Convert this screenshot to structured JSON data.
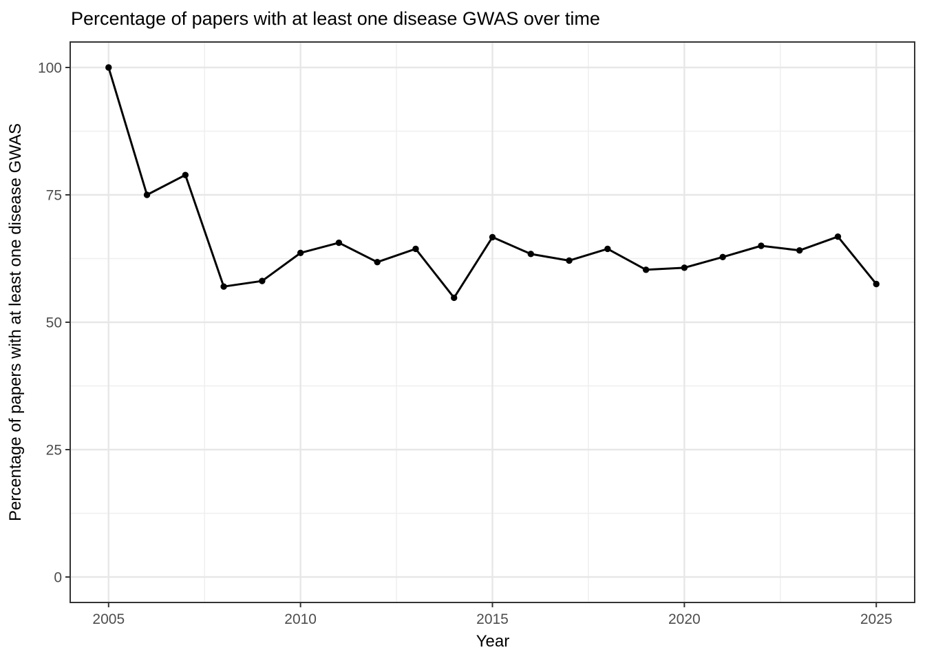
{
  "chart_data": {
    "type": "line",
    "title": "Percentage of papers with at least one disease GWAS over time",
    "xlabel": "Year",
    "ylabel": "Percentage of papers with at least one disease GWAS",
    "x": [
      2005,
      2006,
      2007,
      2008,
      2009,
      2010,
      2011,
      2012,
      2013,
      2014,
      2015,
      2016,
      2017,
      2018,
      2019,
      2020,
      2021,
      2022,
      2023,
      2024,
      2025
    ],
    "values": [
      100,
      75,
      78.9,
      57.0,
      58.1,
      63.6,
      65.6,
      61.8,
      64.4,
      54.8,
      66.7,
      63.4,
      62.1,
      64.4,
      60.3,
      60.7,
      62.8,
      65.0,
      64.1,
      66.8,
      57.5
    ],
    "series_name": "percent_with_disease_gwas",
    "x_ticks": [
      2005,
      2010,
      2015,
      2020,
      2025
    ],
    "y_ticks": [
      0,
      25,
      50,
      75,
      100
    ],
    "x_minor_gridlines": [
      2007.5,
      2012.5,
      2017.5,
      2022.5
    ],
    "y_minor_gridlines": [
      12.5,
      37.5,
      62.5,
      87.5
    ],
    "xlim": [
      2004,
      2026
    ],
    "ylim": [
      -5,
      105
    ],
    "grid": "on",
    "legend": "none",
    "marker": "filled-circle",
    "colors": {
      "line": "#000000",
      "point": "#000000",
      "grid_major": "#E7E7E7",
      "grid_minor": "#EFEFEF",
      "panel_border": "#333333",
      "tick_mark": "#333333",
      "tick_label": "#4D4D4D",
      "title": "#000000",
      "axis_title": "#000000",
      "background": "#FFFFFF"
    }
  }
}
